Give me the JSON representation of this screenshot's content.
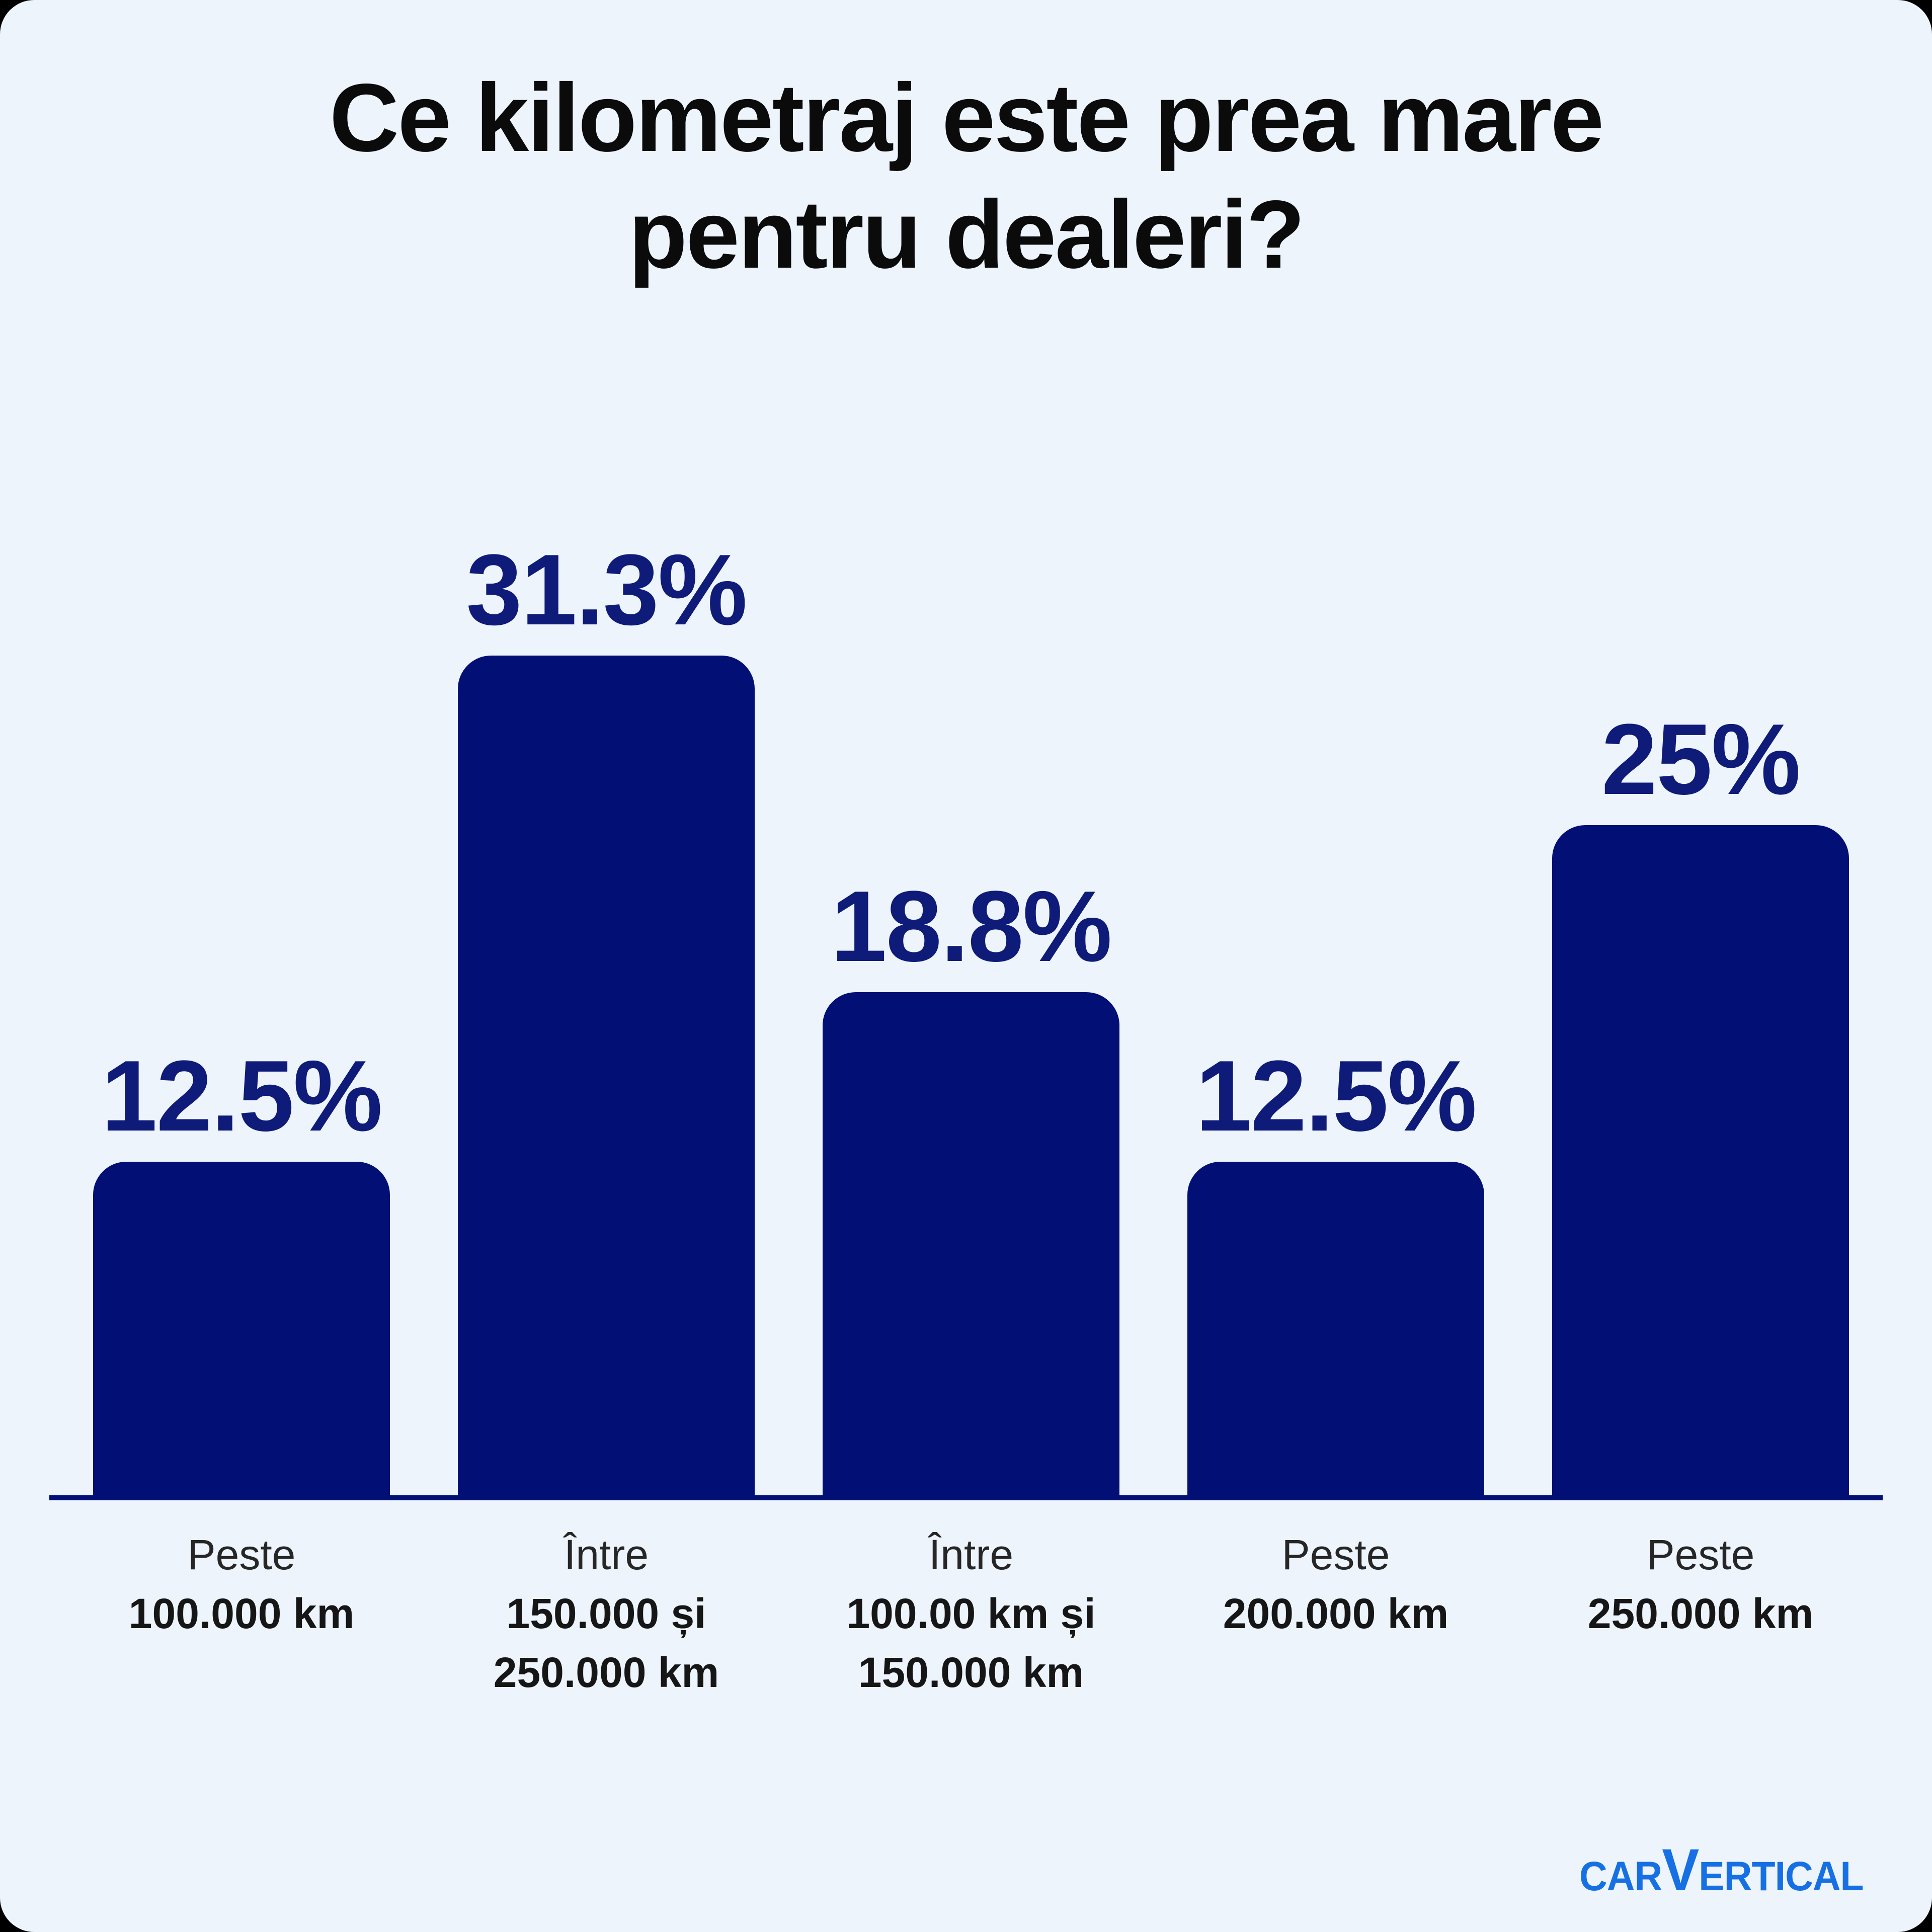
{
  "page": {
    "outer_background": "#000000",
    "card_background": "#edf4fc"
  },
  "title": "Ce kilometraj este prea mare pentru dealeri?",
  "chart_data": {
    "type": "bar",
    "title": "Ce kilometraj este prea mare pentru dealeri?",
    "unit": "%",
    "xlabel": "",
    "ylabel": "",
    "ylim": [
      0,
      35
    ],
    "grid": false,
    "legend": false,
    "bar_color": "#021076",
    "value_label_color": "#0e1b78",
    "axis_color": "#021076",
    "title_color": "#0b0b0b",
    "category_color": "#262626",
    "category_bold_color": "#161616",
    "categories": [
      "Peste 100.000 km",
      "Între 150.000 și 250.000 km",
      "Între 100.00 km și 150.000 km",
      "Peste 200.000 km",
      "Peste 250.000 km"
    ],
    "values": [
      12.5,
      31.3,
      18.8,
      12.5,
      25
    ],
    "value_labels": [
      "12.5%",
      "31.3%",
      "18.8%",
      "12.5%",
      "25%"
    ],
    "bars": [
      {
        "value": 12.5,
        "label": "12.5%",
        "category_lines": [
          "Peste",
          "100.000 km"
        ]
      },
      {
        "value": 31.3,
        "label": "31.3%",
        "category_lines": [
          "Între",
          "150.000 și",
          "250.000 km"
        ]
      },
      {
        "value": 18.8,
        "label": "18.8%",
        "category_lines": [
          "Între",
          "100.00 km și",
          "150.000 km"
        ]
      },
      {
        "value": 12.5,
        "label": "12.5%",
        "category_lines": [
          "Peste",
          "200.000 km"
        ]
      },
      {
        "value": 25,
        "label": "25%",
        "category_lines": [
          "Peste",
          "250.000 km"
        ]
      }
    ]
  },
  "logo": {
    "name": "carVertical",
    "car": "CAR",
    "v": "V",
    "ertical": "ERTICAL",
    "color": "#1670e4"
  }
}
